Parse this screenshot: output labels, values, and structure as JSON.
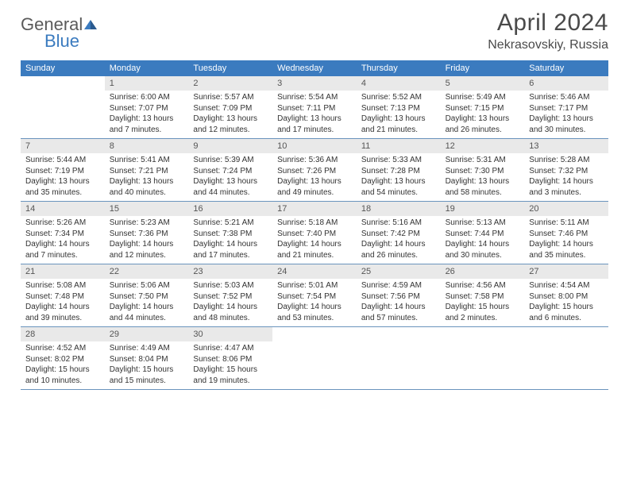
{
  "logo": {
    "text1": "General",
    "text2": "Blue",
    "general_color": "#5a5a5a",
    "blue_color": "#3b7bbf"
  },
  "title": "April 2024",
  "location": "Nekrasovskiy, Russia",
  "colors": {
    "header_bg": "#3b7bbf",
    "header_text": "#ffffff",
    "daynum_bg": "#e9e9e9",
    "border": "#6a94bd",
    "text": "#333333",
    "page_bg": "#ffffff"
  },
  "typography": {
    "title_fontsize": 30,
    "location_fontsize": 16,
    "dayheader_fontsize": 11,
    "cell_fontsize": 10
  },
  "day_headers": [
    "Sunday",
    "Monday",
    "Tuesday",
    "Wednesday",
    "Thursday",
    "Friday",
    "Saturday"
  ],
  "weeks": [
    [
      {
        "blank": true
      },
      {
        "n": "1",
        "sunrise": "6:00 AM",
        "sunset": "7:07 PM",
        "daylight": "13 hours and 7 minutes."
      },
      {
        "n": "2",
        "sunrise": "5:57 AM",
        "sunset": "7:09 PM",
        "daylight": "13 hours and 12 minutes."
      },
      {
        "n": "3",
        "sunrise": "5:54 AM",
        "sunset": "7:11 PM",
        "daylight": "13 hours and 17 minutes."
      },
      {
        "n": "4",
        "sunrise": "5:52 AM",
        "sunset": "7:13 PM",
        "daylight": "13 hours and 21 minutes."
      },
      {
        "n": "5",
        "sunrise": "5:49 AM",
        "sunset": "7:15 PM",
        "daylight": "13 hours and 26 minutes."
      },
      {
        "n": "6",
        "sunrise": "5:46 AM",
        "sunset": "7:17 PM",
        "daylight": "13 hours and 30 minutes."
      }
    ],
    [
      {
        "n": "7",
        "sunrise": "5:44 AM",
        "sunset": "7:19 PM",
        "daylight": "13 hours and 35 minutes."
      },
      {
        "n": "8",
        "sunrise": "5:41 AM",
        "sunset": "7:21 PM",
        "daylight": "13 hours and 40 minutes."
      },
      {
        "n": "9",
        "sunrise": "5:39 AM",
        "sunset": "7:24 PM",
        "daylight": "13 hours and 44 minutes."
      },
      {
        "n": "10",
        "sunrise": "5:36 AM",
        "sunset": "7:26 PM",
        "daylight": "13 hours and 49 minutes."
      },
      {
        "n": "11",
        "sunrise": "5:33 AM",
        "sunset": "7:28 PM",
        "daylight": "13 hours and 54 minutes."
      },
      {
        "n": "12",
        "sunrise": "5:31 AM",
        "sunset": "7:30 PM",
        "daylight": "13 hours and 58 minutes."
      },
      {
        "n": "13",
        "sunrise": "5:28 AM",
        "sunset": "7:32 PM",
        "daylight": "14 hours and 3 minutes."
      }
    ],
    [
      {
        "n": "14",
        "sunrise": "5:26 AM",
        "sunset": "7:34 PM",
        "daylight": "14 hours and 7 minutes."
      },
      {
        "n": "15",
        "sunrise": "5:23 AM",
        "sunset": "7:36 PM",
        "daylight": "14 hours and 12 minutes."
      },
      {
        "n": "16",
        "sunrise": "5:21 AM",
        "sunset": "7:38 PM",
        "daylight": "14 hours and 17 minutes."
      },
      {
        "n": "17",
        "sunrise": "5:18 AM",
        "sunset": "7:40 PM",
        "daylight": "14 hours and 21 minutes."
      },
      {
        "n": "18",
        "sunrise": "5:16 AM",
        "sunset": "7:42 PM",
        "daylight": "14 hours and 26 minutes."
      },
      {
        "n": "19",
        "sunrise": "5:13 AM",
        "sunset": "7:44 PM",
        "daylight": "14 hours and 30 minutes."
      },
      {
        "n": "20",
        "sunrise": "5:11 AM",
        "sunset": "7:46 PM",
        "daylight": "14 hours and 35 minutes."
      }
    ],
    [
      {
        "n": "21",
        "sunrise": "5:08 AM",
        "sunset": "7:48 PM",
        "daylight": "14 hours and 39 minutes."
      },
      {
        "n": "22",
        "sunrise": "5:06 AM",
        "sunset": "7:50 PM",
        "daylight": "14 hours and 44 minutes."
      },
      {
        "n": "23",
        "sunrise": "5:03 AM",
        "sunset": "7:52 PM",
        "daylight": "14 hours and 48 minutes."
      },
      {
        "n": "24",
        "sunrise": "5:01 AM",
        "sunset": "7:54 PM",
        "daylight": "14 hours and 53 minutes."
      },
      {
        "n": "25",
        "sunrise": "4:59 AM",
        "sunset": "7:56 PM",
        "daylight": "14 hours and 57 minutes."
      },
      {
        "n": "26",
        "sunrise": "4:56 AM",
        "sunset": "7:58 PM",
        "daylight": "15 hours and 2 minutes."
      },
      {
        "n": "27",
        "sunrise": "4:54 AM",
        "sunset": "8:00 PM",
        "daylight": "15 hours and 6 minutes."
      }
    ],
    [
      {
        "n": "28",
        "sunrise": "4:52 AM",
        "sunset": "8:02 PM",
        "daylight": "15 hours and 10 minutes."
      },
      {
        "n": "29",
        "sunrise": "4:49 AM",
        "sunset": "8:04 PM",
        "daylight": "15 hours and 15 minutes."
      },
      {
        "n": "30",
        "sunrise": "4:47 AM",
        "sunset": "8:06 PM",
        "daylight": "15 hours and 19 minutes."
      },
      {
        "blank": true
      },
      {
        "blank": true
      },
      {
        "blank": true
      },
      {
        "blank": true
      }
    ]
  ],
  "labels": {
    "sunrise": "Sunrise:",
    "sunset": "Sunset:",
    "daylight": "Daylight:"
  }
}
